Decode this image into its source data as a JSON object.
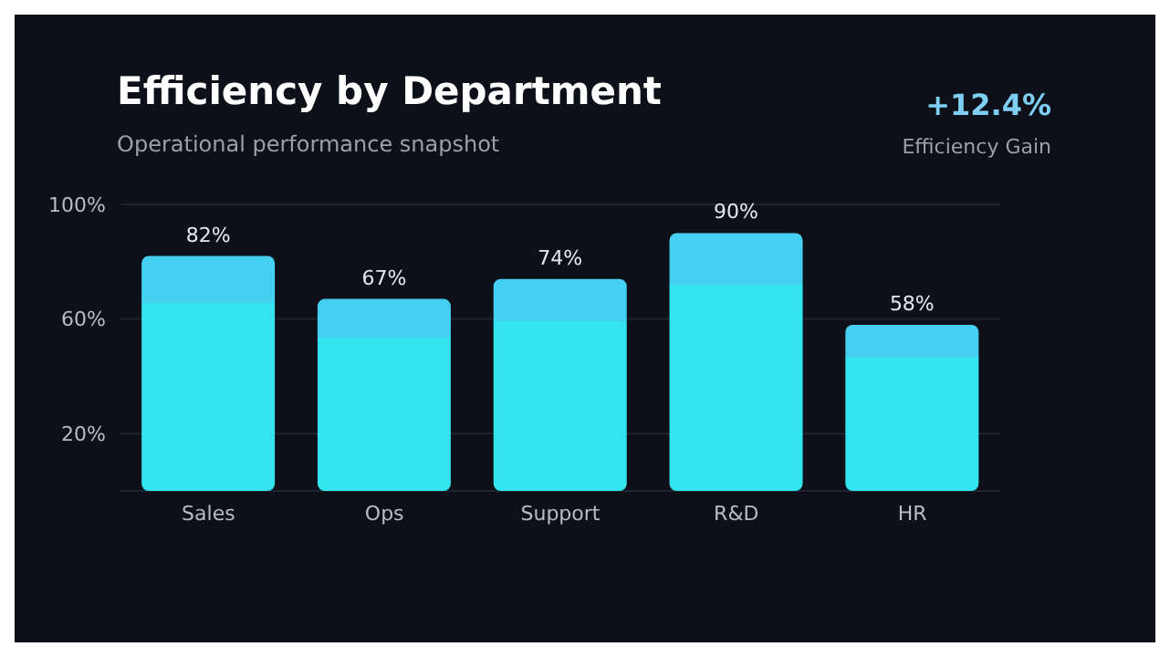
{
  "chart_data": {
    "type": "bar",
    "title": "Efficiency by Department",
    "subtitle": "Operational performance snapshot",
    "annotations": [
      "+12.4%",
      "Efficiency Gain"
    ],
    "categories": [
      "Sales",
      "Ops",
      "Support",
      "R&D",
      "HR"
    ],
    "values": [
      82,
      67,
      74,
      90,
      58
    ],
    "color": "#33e4ee",
    "ylim": [
      0,
      100
    ],
    "yticks": [
      {
        "value": 20,
        "label": "20%"
      },
      {
        "value": 60,
        "label": "60%"
      },
      {
        "value": 100,
        "label": "100%"
      }
    ],
    "value_labels": [
      "82%",
      "67%",
      "74%",
      "90%",
      "58%"
    ],
    "grid": "y"
  }
}
